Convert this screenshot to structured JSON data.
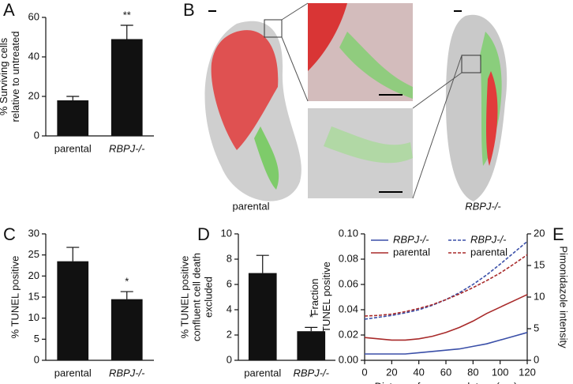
{
  "chart_data": [
    {
      "type": "bar",
      "panel": "A",
      "ylabel": [
        "% Surviving cells",
        "relative to untreated"
      ],
      "categories": [
        "parental",
        "RBPJ-/-"
      ],
      "values": [
        18,
        49
      ],
      "errors": [
        2,
        7
      ],
      "significance": [
        null,
        "**"
      ],
      "color": "#111111",
      "ylim": [
        0,
        60
      ],
      "yticks": [
        0,
        20,
        40,
        60
      ]
    },
    {
      "type": "bar",
      "panel": "C",
      "ylabel": [
        "% TUNEL positive"
      ],
      "categories": [
        "parental",
        "RBPJ-/-"
      ],
      "values": [
        23.5,
        14.5
      ],
      "errors": [
        3.3,
        1.8
      ],
      "significance": [
        null,
        "*"
      ],
      "color": "#111111",
      "ylim": [
        0,
        30
      ],
      "yticks": [
        0,
        5,
        10,
        15,
        20,
        25,
        30
      ]
    },
    {
      "type": "bar",
      "panel": "D",
      "ylabel": [
        "% TUNEL positive",
        "confluent cell death",
        "excluded"
      ],
      "categories": [
        "parental",
        "RBPJ-/-"
      ],
      "values": [
        6.9,
        2.3
      ],
      "errors": [
        1.4,
        0.3
      ],
      "significance": [
        null,
        "*"
      ],
      "color": "#111111",
      "ylim": [
        0,
        10
      ],
      "yticks": [
        0,
        2,
        4,
        6,
        8,
        10
      ]
    },
    {
      "type": "line",
      "panel": "E",
      "ylabel": [
        "Fraction",
        "TUNEL positive"
      ],
      "y2label": "Pimonidazole intensity",
      "xlabel": "Distance from vasculature (µm)",
      "x": [
        0,
        10,
        20,
        30,
        40,
        50,
        60,
        70,
        80,
        90,
        100,
        110,
        120
      ],
      "series": [
        {
          "name": "RBPJ-/-",
          "color": "#3a4fa8",
          "linestyle": "solid",
          "axis": "y",
          "values": [
            0.005,
            0.005,
            0.005,
            0.005,
            0.006,
            0.007,
            0.008,
            0.009,
            0.011,
            0.013,
            0.016,
            0.019,
            0.022
          ]
        },
        {
          "name": "parental",
          "color": "#a82a2a",
          "linestyle": "solid",
          "axis": "y",
          "values": [
            0.018,
            0.017,
            0.016,
            0.016,
            0.017,
            0.019,
            0.022,
            0.026,
            0.031,
            0.037,
            0.042,
            0.047,
            0.052
          ]
        },
        {
          "name": "RBPJ-/-",
          "color": "#3a4fa8",
          "linestyle": "dashed",
          "axis": "y2",
          "values": [
            6.5,
            6.8,
            7.1,
            7.5,
            8.0,
            8.7,
            9.6,
            10.7,
            12.0,
            13.5,
            15.2,
            17.0,
            18.8
          ]
        },
        {
          "name": "parental",
          "color": "#a82a2a",
          "linestyle": "dashed",
          "axis": "y2",
          "values": [
            7.0,
            7.1,
            7.3,
            7.7,
            8.2,
            8.8,
            9.6,
            10.5,
            11.5,
            12.6,
            13.8,
            15.2,
            16.7
          ]
        }
      ],
      "xlim": [
        0,
        120
      ],
      "xticks": [
        0,
        20,
        40,
        60,
        80,
        100,
        120
      ],
      "ylim": [
        0,
        0.1
      ],
      "yticks": [
        {
          "value": 0,
          "label": "0.00"
        },
        {
          "value": 0.02,
          "label": "0.02"
        },
        {
          "value": 0.04,
          "label": "0.04"
        },
        {
          "value": 0.06,
          "label": "0.06"
        },
        {
          "value": 0.08,
          "label": "0.08"
        },
        {
          "value": 0.1,
          "label": "0.10"
        }
      ],
      "y2lim": [
        0,
        20
      ],
      "y2ticks": [
        0,
        5,
        10,
        15,
        20
      ]
    }
  ],
  "panel_b": {
    "panel": "B",
    "labels": [
      "parental",
      "RBPJ-/-"
    ]
  }
}
